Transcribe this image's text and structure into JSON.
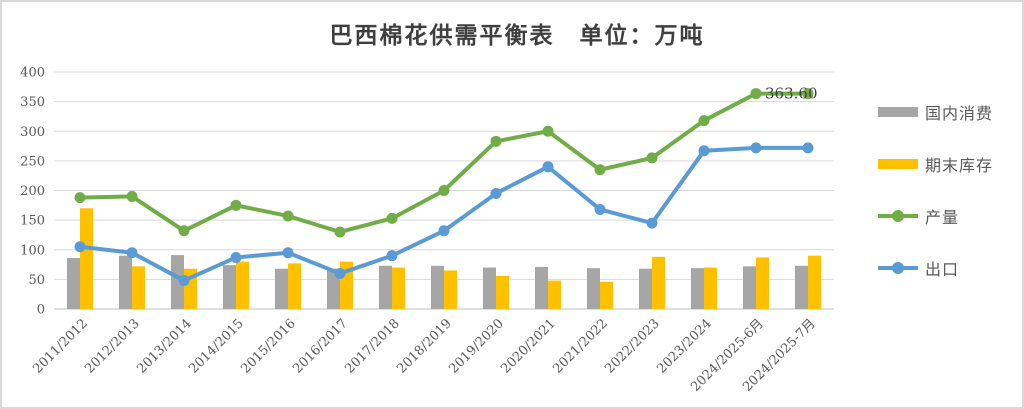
{
  "chart_data": {
    "type": "combo",
    "title": "巴西棉花供需平衡表　单位：万吨",
    "categories": [
      "2011/2012",
      "2012/2013",
      "2013/2014",
      "2014/2015",
      "2015/2016",
      "2016/2017",
      "2017/2018",
      "2018/2019",
      "2019/2020",
      "2020/2021",
      "2021/2022",
      "2022/2023",
      "2023/2024",
      "2024/2025-6月",
      "2024/2025-7月"
    ],
    "series": [
      {
        "name": "国内消费",
        "slug": "domestic-consumption",
        "type": "bar",
        "color": "#A6A6A6",
        "values": [
          86,
          90,
          91,
          74,
          68,
          68,
          73,
          73,
          70,
          71,
          69,
          68,
          69,
          72,
          73
        ]
      },
      {
        "name": "期末库存",
        "slug": "ending-stocks",
        "type": "bar",
        "color": "#FFC000",
        "values": [
          170,
          72,
          68,
          80,
          77,
          80,
          70,
          65,
          56,
          48,
          46,
          88,
          70,
          87,
          90
        ]
      },
      {
        "name": "产量",
        "slug": "production",
        "type": "line",
        "color": "#70AD47",
        "values": [
          188,
          190,
          132,
          175,
          157,
          130,
          153,
          200,
          283,
          300,
          235,
          255,
          318,
          363.6,
          363.6
        ]
      },
      {
        "name": "出口",
        "slug": "exports",
        "type": "line",
        "color": "#5B9BD5",
        "values": [
          105,
          95,
          48,
          87,
          95,
          60,
          90,
          132,
          195,
          240,
          168,
          145,
          267,
          272,
          272
        ]
      }
    ],
    "ylim": [
      0,
      400
    ],
    "ytick_step": 50,
    "ytick_labels": [
      "0",
      "50",
      "100",
      "150",
      "200",
      "250",
      "300",
      "350",
      "400"
    ],
    "grid": "horizontal",
    "legend_position": "right",
    "data_labels": [
      {
        "series": "产量",
        "category_index": 13,
        "text": "363.60"
      }
    ],
    "colors": {
      "gridline": "#D9D9D9",
      "axis_line": "#BFBFBF",
      "tick_label": "#595959",
      "title": "#3f3f3f",
      "data_label": "#404040"
    }
  }
}
